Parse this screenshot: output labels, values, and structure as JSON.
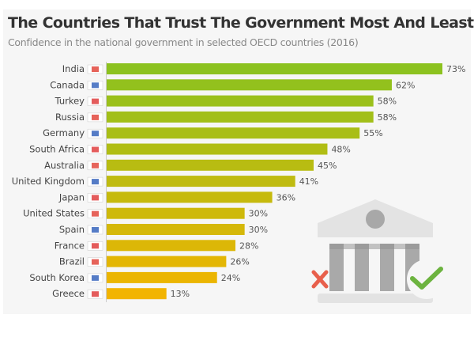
{
  "chart_data": {
    "type": "bar",
    "orientation": "horizontal",
    "title": "The Countries That Trust The Government Most And Least",
    "subtitle": "Confidence in the national government in selected OECD countries (2016)",
    "categories": [
      "India",
      "Canada",
      "Turkey",
      "Russia",
      "Germany",
      "South Africa",
      "Australia",
      "United Kingdom",
      "Japan",
      "United States",
      "Spain",
      "France",
      "Brazil",
      "South Korea",
      "Greece"
    ],
    "values": [
      73,
      62,
      58,
      58,
      55,
      48,
      45,
      41,
      36,
      30,
      30,
      28,
      26,
      24,
      13
    ],
    "value_suffix": "%",
    "xlim": [
      0,
      73
    ],
    "grid": false,
    "colors": {
      "high": "#8cc21f",
      "low": "#f2b400"
    },
    "icons": [
      "flag-icon",
      "government-building-icon",
      "cross-icon",
      "check-icon"
    ]
  }
}
